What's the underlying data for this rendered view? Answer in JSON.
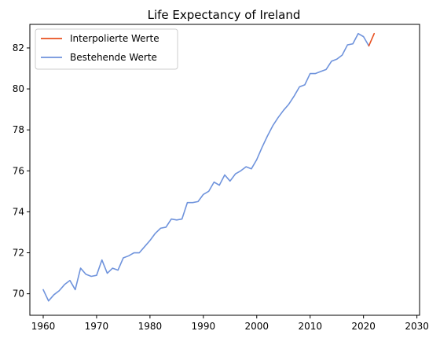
{
  "chart_data": {
    "type": "line",
    "title": "Life Expectancy of Ireland",
    "xlabel": "",
    "ylabel": "",
    "xlim": [
      1957.5,
      2030.5
    ],
    "ylim": [
      68.95,
      83.15
    ],
    "x_ticks": [
      1960,
      1970,
      1980,
      1990,
      2000,
      2010,
      2020,
      2030
    ],
    "y_ticks": [
      70,
      72,
      74,
      76,
      78,
      80,
      82
    ],
    "grid": false,
    "legend_position": "top-left",
    "series": [
      {
        "name": "Interpolierte Werte",
        "color": "#e8501f",
        "x": [
          2021,
          2022
        ],
        "values": [
          82.1,
          82.7
        ]
      },
      {
        "name": "Bestehende Werte",
        "color": "#6f93dc",
        "x": [
          1960,
          1961,
          1962,
          1963,
          1964,
          1965,
          1966,
          1967,
          1968,
          1969,
          1970,
          1971,
          1972,
          1973,
          1974,
          1975,
          1976,
          1977,
          1978,
          1979,
          1980,
          1981,
          1982,
          1983,
          1984,
          1985,
          1986,
          1987,
          1988,
          1989,
          1990,
          1991,
          1992,
          1993,
          1994,
          1995,
          1996,
          1997,
          1998,
          1999,
          2000,
          2001,
          2002,
          2003,
          2004,
          2005,
          2006,
          2007,
          2008,
          2009,
          2010,
          2011,
          2012,
          2013,
          2014,
          2015,
          2016,
          2017,
          2018,
          2019,
          2020,
          2021
        ],
        "values": [
          70.2,
          69.65,
          69.95,
          70.15,
          70.45,
          70.65,
          70.2,
          71.25,
          70.95,
          70.85,
          70.9,
          71.65,
          71.0,
          71.25,
          71.15,
          71.75,
          71.85,
          72.0,
          72.0,
          72.3,
          72.6,
          72.95,
          73.2,
          73.25,
          73.65,
          73.6,
          73.65,
          74.45,
          74.45,
          74.5,
          74.85,
          75.0,
          75.45,
          75.3,
          75.8,
          75.5,
          75.85,
          76.0,
          76.2,
          76.1,
          76.55,
          77.15,
          77.7,
          78.2,
          78.6,
          78.95,
          79.25,
          79.65,
          80.1,
          80.2,
          80.75,
          80.75,
          80.85,
          80.95,
          81.35,
          81.45,
          81.65,
          82.15,
          82.2,
          82.7,
          82.55,
          82.1
        ]
      }
    ]
  }
}
